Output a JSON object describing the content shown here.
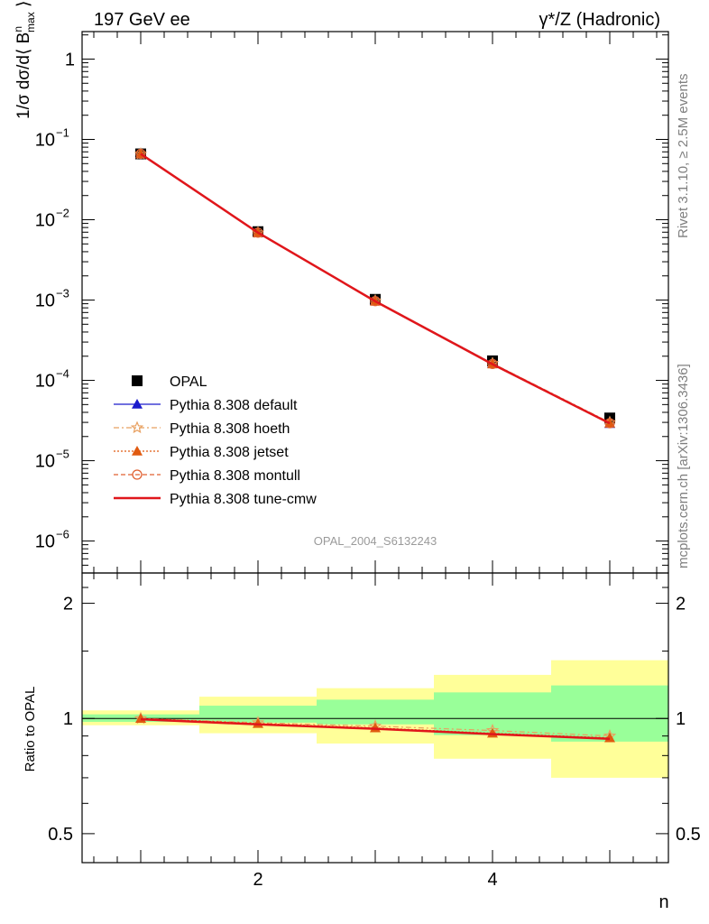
{
  "header": {
    "left": "197 GeV ee",
    "right": "γ*/Z (Hadronic)"
  },
  "side_labels": {
    "rivet": "Rivet 3.1.10, ≥ 2.5M events",
    "mcplots": "mcplots.cern.ch [arXiv:1306.3436]"
  },
  "analysis_id": "OPAL_2004_S6132243",
  "chart_data": [
    {
      "type": "scatter",
      "panel": "main",
      "ylabel": "1/σ dσ/d⟨ B^n_max ⟩",
      "yscale": "log",
      "xlim": [
        0.5,
        5.5
      ],
      "ylim": [
        4e-07,
        2.2
      ],
      "yticks": [
        {
          "v": 1,
          "label": "1"
        },
        {
          "v": 0.1,
          "label": "10",
          "exp": "−1"
        },
        {
          "v": 0.01,
          "label": "10",
          "exp": "−2"
        },
        {
          "v": 0.001,
          "label": "10",
          "exp": "−3"
        },
        {
          "v": 0.0001,
          "label": "10",
          "exp": "−4"
        },
        {
          "v": 1e-05,
          "label": "10",
          "exp": "−5"
        },
        {
          "v": 1e-06,
          "label": "10",
          "exp": "−6"
        }
      ],
      "x": [
        1,
        2,
        3,
        4,
        5
      ],
      "legend_position": "lower-left",
      "series": [
        {
          "name": "OPAL",
          "color": "#000000",
          "marker": "square",
          "values": [
            0.066,
            0.0071,
            0.00102,
            0.000175,
            3.4e-05
          ]
        },
        {
          "name": "Pythia 8.308 default",
          "color": "#1a1acc",
          "marker": "triangle",
          "values": [
            0.066,
            0.0069,
            0.000975,
            0.000162,
            2.9e-05
          ]
        },
        {
          "name": "Pythia 8.308 hoeth",
          "color": "#e8a060",
          "marker": "star",
          "values": [
            0.066,
            0.0069,
            0.00098,
            0.000163,
            3e-05
          ]
        },
        {
          "name": "Pythia 8.308 jetset",
          "color": "#e05a10",
          "marker": "triangle",
          "values": [
            0.066,
            0.0069,
            0.000968,
            0.00016,
            2.93e-05
          ]
        },
        {
          "name": "Pythia 8.308 montull",
          "color": "#e06030",
          "marker": "circle",
          "values": [
            0.066,
            0.0069,
            0.000968,
            0.00016,
            2.93e-05
          ]
        },
        {
          "name": "Pythia 8.308 tune-cmw",
          "color": "#e0161b",
          "marker": "line",
          "values": [
            0.066,
            0.0069,
            0.000966,
            0.000159,
            2.92e-05
          ]
        }
      ]
    },
    {
      "type": "line",
      "panel": "ratio",
      "ylabel": "Ratio to OPAL",
      "xlabel": "n",
      "yscale": "log",
      "xlim": [
        0.5,
        5.5
      ],
      "ylim": [
        0.42,
        2.4
      ],
      "yticks": [
        {
          "v": 2,
          "label": "2"
        },
        {
          "v": 1,
          "label": "1"
        },
        {
          "v": 0.5,
          "label": "0.5"
        }
      ],
      "xticks": [
        {
          "v": 2,
          "label": "2"
        },
        {
          "v": 4,
          "label": "4"
        }
      ],
      "bands": {
        "yellow": [
          [
            0.96,
            1.05
          ],
          [
            0.915,
            1.14
          ],
          [
            0.86,
            1.2
          ],
          [
            0.785,
            1.3
          ],
          [
            0.7,
            1.42
          ]
        ],
        "green": [
          [
            0.98,
            1.025
          ],
          [
            0.975,
            1.08
          ],
          [
            0.965,
            1.12
          ],
          [
            0.905,
            1.17
          ],
          [
            0.87,
            1.22
          ]
        ]
      },
      "x": [
        1,
        2,
        3,
        4,
        5
      ],
      "series": [
        {
          "name": "Pythia 8.308 hoeth",
          "color": "#e8a060",
          "values": [
            1.0,
            0.975,
            0.955,
            0.93,
            0.9
          ]
        },
        {
          "name": "Pythia 8.308 jetset",
          "color": "#e05a10",
          "values": [
            1.0,
            0.97,
            0.945,
            0.915,
            0.89
          ]
        },
        {
          "name": "Pythia 8.308 tune-cmw",
          "color": "#e0161b",
          "values": [
            0.995,
            0.965,
            0.94,
            0.91,
            0.885
          ]
        }
      ]
    }
  ]
}
